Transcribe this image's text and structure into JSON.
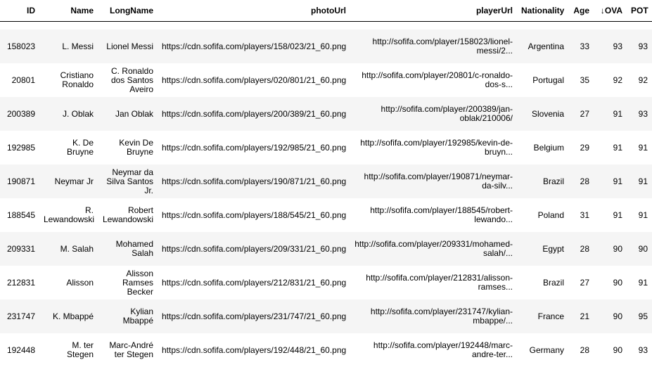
{
  "table": {
    "columns": {
      "id": "ID",
      "name": "Name",
      "longname": "LongName",
      "photourl": "photoUrl",
      "playerurl": "playerUrl",
      "nationality": "Nationality",
      "age": "Age",
      "ova_arrow": "↓",
      "ova": "OVA",
      "pot": "POT"
    },
    "rows": [
      {
        "id": "158023",
        "name": "L. Messi",
        "longname": "Lionel Messi",
        "photo": "https://cdn.sofifa.com/players/158/023/21_60.png",
        "player": "http://sofifa.com/player/158023/lionel-messi/2...",
        "nat": "Argentina",
        "age": "33",
        "ova": "93",
        "pot": "93"
      },
      {
        "id": "20801",
        "name": "Cristiano Ronaldo",
        "longname": "C. Ronaldo dos Santos Aveiro",
        "photo": "https://cdn.sofifa.com/players/020/801/21_60.png",
        "player": "http://sofifa.com/player/20801/c-ronaldo-dos-s...",
        "nat": "Portugal",
        "age": "35",
        "ova": "92",
        "pot": "92"
      },
      {
        "id": "200389",
        "name": "J. Oblak",
        "longname": "Jan Oblak",
        "photo": "https://cdn.sofifa.com/players/200/389/21_60.png",
        "player": "http://sofifa.com/player/200389/jan-oblak/210006/",
        "nat": "Slovenia",
        "age": "27",
        "ova": "91",
        "pot": "93"
      },
      {
        "id": "192985",
        "name": "K. De Bruyne",
        "longname": "Kevin De Bruyne",
        "photo": "https://cdn.sofifa.com/players/192/985/21_60.png",
        "player": "http://sofifa.com/player/192985/kevin-de-bruyn...",
        "nat": "Belgium",
        "age": "29",
        "ova": "91",
        "pot": "91"
      },
      {
        "id": "190871",
        "name": "Neymar Jr",
        "longname": "Neymar da Silva Santos Jr.",
        "photo": "https://cdn.sofifa.com/players/190/871/21_60.png",
        "player": "http://sofifa.com/player/190871/neymar-da-silv...",
        "nat": "Brazil",
        "age": "28",
        "ova": "91",
        "pot": "91"
      },
      {
        "id": "188545",
        "name": "R. Lewandowski",
        "longname": "Robert Lewandowski",
        "photo": "https://cdn.sofifa.com/players/188/545/21_60.png",
        "player": "http://sofifa.com/player/188545/robert-lewando...",
        "nat": "Poland",
        "age": "31",
        "ova": "91",
        "pot": "91"
      },
      {
        "id": "209331",
        "name": "M. Salah",
        "longname": "Mohamed Salah",
        "photo": "https://cdn.sofifa.com/players/209/331/21_60.png",
        "player": "http://sofifa.com/player/209331/mohamed-salah/...",
        "nat": "Egypt",
        "age": "28",
        "ova": "90",
        "pot": "90"
      },
      {
        "id": "212831",
        "name": "Alisson",
        "longname": "Alisson Ramses Becker",
        "photo": "https://cdn.sofifa.com/players/212/831/21_60.png",
        "player": "http://sofifa.com/player/212831/alisson-ramses...",
        "nat": "Brazil",
        "age": "27",
        "ova": "90",
        "pot": "91"
      },
      {
        "id": "231747",
        "name": "K. Mbappé",
        "longname": "Kylian Mbappé",
        "photo": "https://cdn.sofifa.com/players/231/747/21_60.png",
        "player": "http://sofifa.com/player/231747/kylian-mbappe/...",
        "nat": "France",
        "age": "21",
        "ova": "90",
        "pot": "95"
      },
      {
        "id": "192448",
        "name": "M. ter Stegen",
        "longname": "Marc-André ter Stegen",
        "photo": "https://cdn.sofifa.com/players/192/448/21_60.png",
        "player": "http://sofifa.com/player/192448/marc-andre-ter...",
        "nat": "Germany",
        "age": "28",
        "ova": "90",
        "pot": "93"
      }
    ]
  }
}
